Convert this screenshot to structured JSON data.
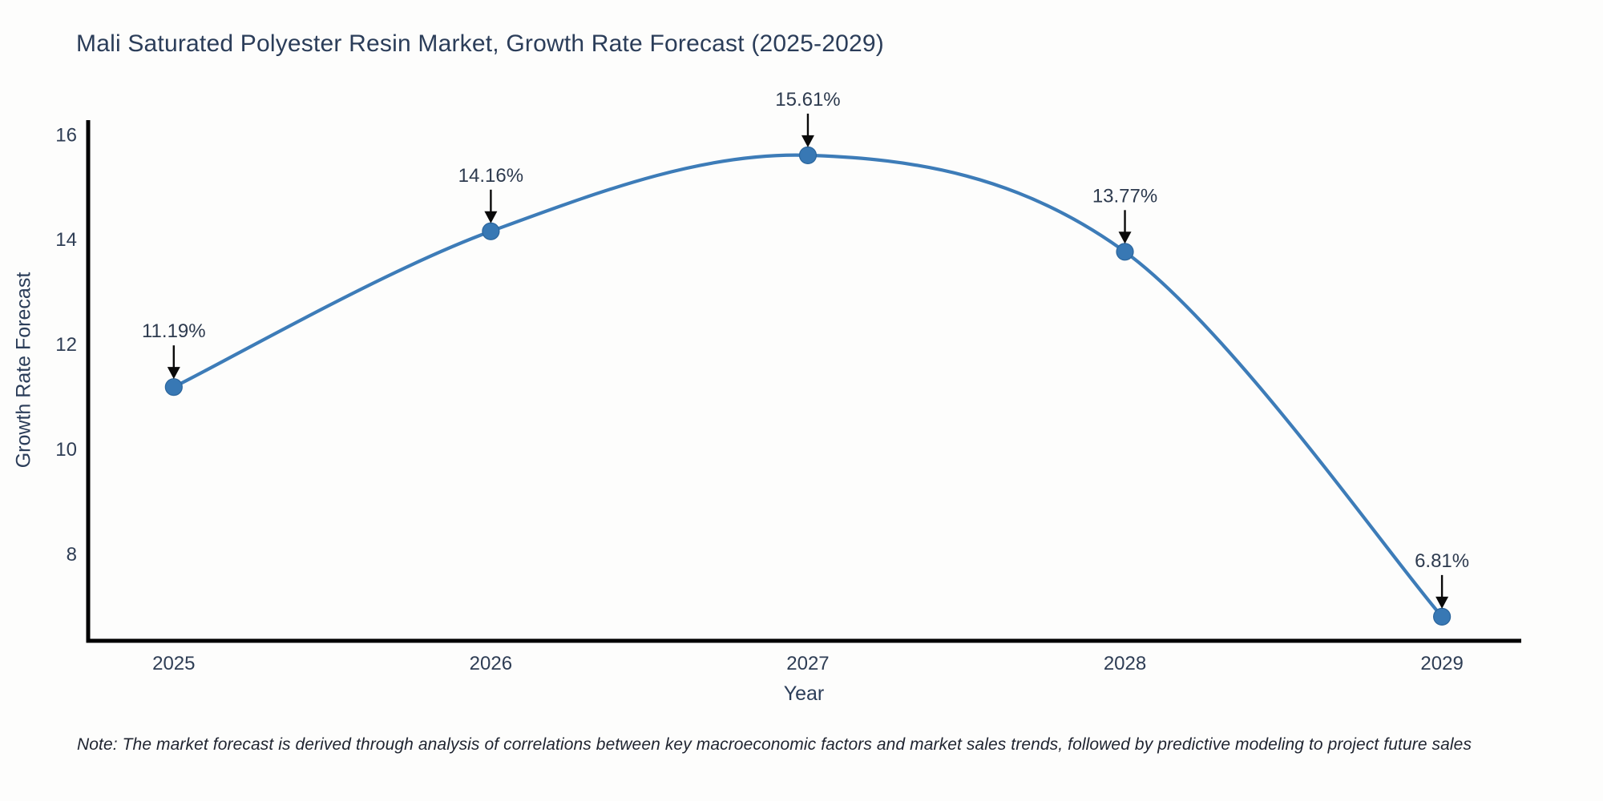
{
  "title": "Mali Saturated Polyester Resin Market, Growth Rate Forecast (2025-2029)",
  "note": "Note: The market forecast is derived through analysis of correlations between key macroeconomic factors and market sales trends, followed by predictive modeling to project future sales",
  "colors": {
    "line": "#3d7cb8",
    "marker": "#3878b4",
    "marker_edge": "#2b659c",
    "axis": "#000000",
    "arrow": "#0a0a0a",
    "tick_text": "#2e3d54",
    "annotation_text": "#2d3a4e",
    "title_text": "#2b3d59",
    "background": "#fdfdfc"
  },
  "chart_data": {
    "type": "line",
    "x": [
      2025,
      2026,
      2027,
      2028,
      2029
    ],
    "series": [
      {
        "name": "Growth Rate Forecast",
        "values": [
          11.19,
          14.16,
          15.61,
          13.77,
          6.81
        ]
      }
    ],
    "point_labels": [
      "11.19%",
      "14.16%",
      "15.61%",
      "13.77%",
      "6.81%"
    ],
    "title": "Mali Saturated Polyester Resin Market, Growth Rate Forecast (2025-2029)",
    "xlabel": "Year",
    "ylabel": "Growth Rate Forecast",
    "x_ticks": [
      "2025",
      "2026",
      "2027",
      "2028",
      "2029"
    ],
    "y_ticks": [
      8,
      10,
      12,
      14,
      16
    ],
    "xlim": [
      2024.73,
      2029.25
    ],
    "ylim": [
      6.35,
      16.28
    ],
    "grid": false,
    "legend": "none",
    "line_style": "spline",
    "annotation_arrows": true
  }
}
